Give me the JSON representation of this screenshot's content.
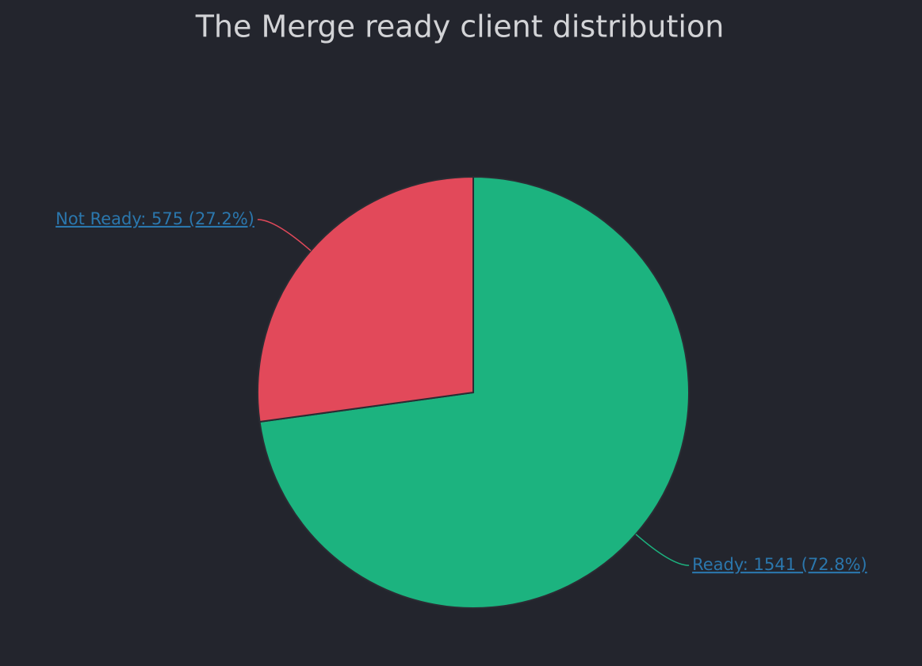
{
  "chart_data": {
    "type": "pie",
    "title": "The Merge ready client distribution",
    "categories": [
      "Ready",
      "Not Ready"
    ],
    "values": [
      1541,
      575
    ],
    "value_labels": [
      "Ready: 1541 (72.8%)",
      "Not Ready: 575 (27.2%)"
    ],
    "colors": [
      "#1cb37f",
      "#e2495a"
    ]
  }
}
